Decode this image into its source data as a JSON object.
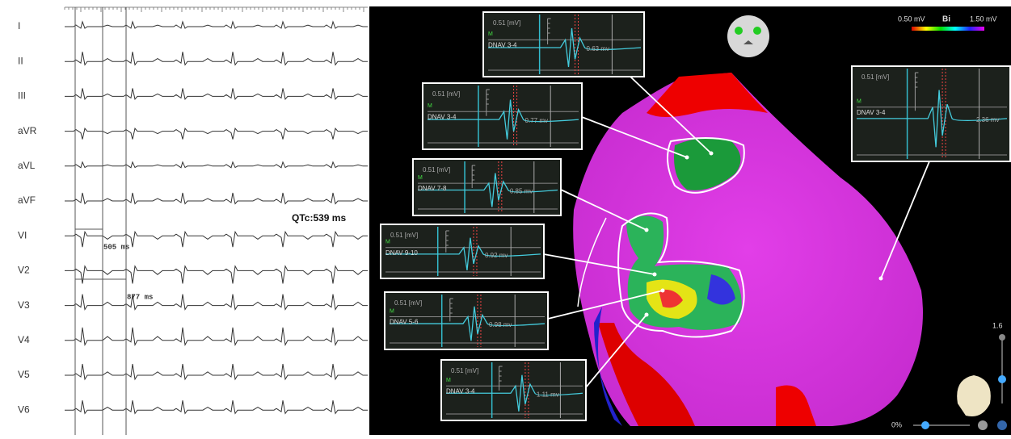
{
  "ecg": {
    "leads": [
      "I",
      "II",
      "III",
      "aVR",
      "aVL",
      "aVF",
      "VI",
      "V2",
      "V3",
      "V4",
      "V5",
      "V6"
    ],
    "intervals": [
      "505 ms",
      "877 ms"
    ],
    "qtc": "QTc:539 ms"
  },
  "map": {
    "colorbar": {
      "min": "0.50 mV",
      "mode": "Bi",
      "max": "1.50 mV"
    },
    "insets": [
      {
        "scale": "0.51 [mV]",
        "marker": "M",
        "label": "DNAV 3-4",
        "amplitude": "0.63 mv"
      },
      {
        "scale": "0.51 [mV]",
        "marker": "M",
        "label": "DNAV 3-4",
        "amplitude": "0.77 mv"
      },
      {
        "scale": "0.51 [mV]",
        "marker": "M",
        "label": "DNAV 7-8",
        "amplitude": "0.85 mv"
      },
      {
        "scale": "0.51 [mV]",
        "marker": "M",
        "label": "DNAV 9-10",
        "amplitude": "0.92 mv"
      },
      {
        "scale": "0.51 [mV]",
        "marker": "M",
        "label": "DNAV 5-6",
        "amplitude": "0.98 mv"
      },
      {
        "scale": "0.51 [mV]",
        "marker": "M",
        "label": "DNAV 3-4",
        "amplitude": "1.11 mv"
      },
      {
        "scale": "0.51 [mV]",
        "marker": "M",
        "label": "DNAV 3-4",
        "amplitude": "2.36 mv"
      }
    ],
    "zoom": "1.6",
    "opacity": "0%"
  }
}
